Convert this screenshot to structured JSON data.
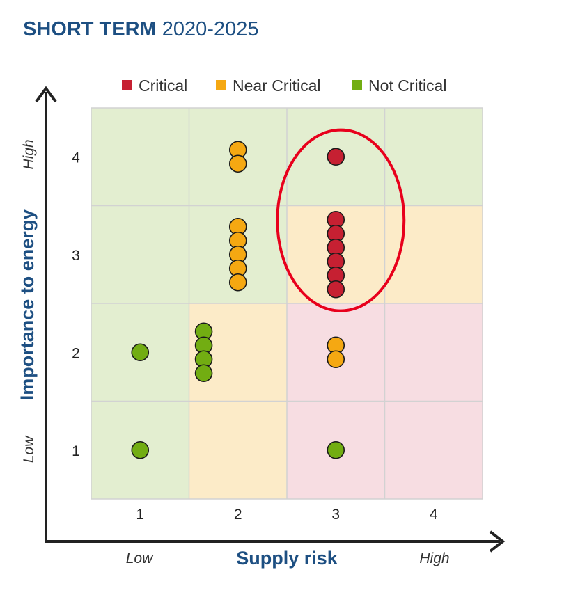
{
  "title": {
    "bold": "SHORT TERM",
    "light": "2020-2025"
  },
  "chart_data": {
    "type": "scatter",
    "title": "SHORT TERM 2020-2025",
    "xlabel": "Supply risk",
    "ylabel": "Importance to energy",
    "x_ticks": [
      "1",
      "2",
      "3",
      "4"
    ],
    "y_ticks": [
      "1",
      "2",
      "3",
      "4"
    ],
    "x_end_labels": {
      "low": "Low",
      "high": "High"
    },
    "y_end_labels": {
      "low": "Low",
      "high": "High"
    },
    "xlim": [
      0.5,
      4.5
    ],
    "ylim": [
      0.5,
      4.5
    ],
    "grid": true,
    "legend_position": "top",
    "legend": [
      {
        "name": "Critical",
        "color": "#c62032"
      },
      {
        "name": "Near Critical",
        "color": "#f5a812"
      },
      {
        "name": "Not Critical",
        "color": "#72ad12"
      }
    ],
    "cell_zones": [
      [
        "Not Critical",
        "Not Critical",
        "Not Critical",
        "Not Critical"
      ],
      [
        "Not Critical",
        "Not Critical",
        "Near Critical",
        "Near Critical"
      ],
      [
        "Not Critical",
        "Near Critical",
        "Critical",
        "Critical"
      ],
      [
        "Not Critical",
        "Near Critical",
        "Critical",
        "Critical"
      ]
    ],
    "zone_colors": {
      "Critical": "#f7dde2",
      "Near Critical": "#fcebc8",
      "Not Critical": "#e3eed0"
    },
    "series": [
      {
        "name": "Critical",
        "color": "#c62032",
        "points": [
          {
            "x": 3,
            "y": 4,
            "count": 1
          },
          {
            "x": 3,
            "y": 3,
            "count": 6
          }
        ]
      },
      {
        "name": "Near Critical",
        "color": "#f5a812",
        "points": [
          {
            "x": 2,
            "y": 4,
            "count": 2
          },
          {
            "x": 2,
            "y": 3,
            "count": 5
          },
          {
            "x": 3,
            "y": 2,
            "count": 2
          }
        ]
      },
      {
        "name": "Not Critical",
        "color": "#72ad12",
        "points": [
          {
            "x": 1,
            "y": 2,
            "count": 1
          },
          {
            "x": 1.65,
            "y": 2,
            "count": 4
          },
          {
            "x": 1,
            "y": 1,
            "count": 1
          },
          {
            "x": 3,
            "y": 1,
            "count": 1
          }
        ]
      }
    ],
    "highlight": {
      "shape": "ellipse",
      "color": "#e8001c",
      "center": {
        "x": 3.05,
        "y": 3.35
      }
    }
  }
}
